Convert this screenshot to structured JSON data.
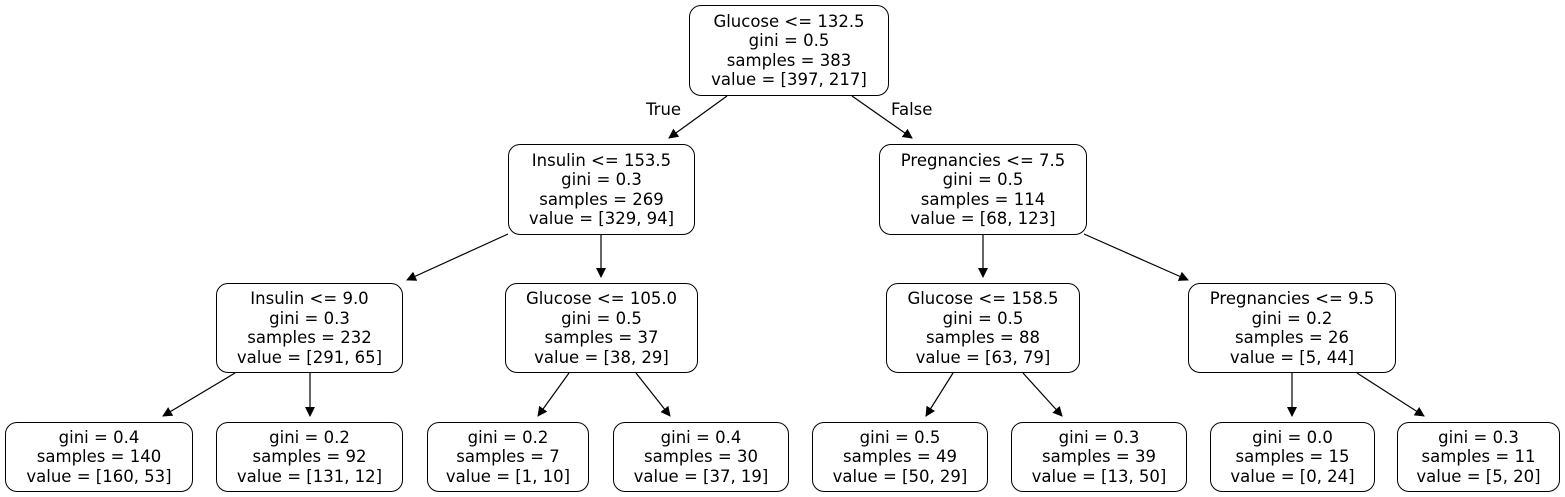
{
  "tree": {
    "root": {
      "lines": [
        "Glucose <= 132.5",
        "gini = 0.5",
        "samples = 383",
        "value = [397, 217]"
      ]
    },
    "l": {
      "lines": [
        "Insulin <= 153.5",
        "gini = 0.3",
        "samples = 269",
        "value = [329, 94]"
      ]
    },
    "r": {
      "lines": [
        "Pregnancies <= 7.5",
        "gini = 0.5",
        "samples = 114",
        "value = [68, 123]"
      ]
    },
    "ll": {
      "lines": [
        "Insulin <= 9.0",
        "gini = 0.3",
        "samples = 232",
        "value = [291, 65]"
      ]
    },
    "lr": {
      "lines": [
        "Glucose <= 105.0",
        "gini = 0.5",
        "samples = 37",
        "value = [38, 29]"
      ]
    },
    "rl": {
      "lines": [
        "Glucose <= 158.5",
        "gini = 0.5",
        "samples = 88",
        "value = [63, 79]"
      ]
    },
    "rr": {
      "lines": [
        "Pregnancies <= 9.5",
        "gini = 0.2",
        "samples = 26",
        "value = [5, 44]"
      ]
    },
    "lll": {
      "lines": [
        "gini = 0.4",
        "samples = 140",
        "value = [160, 53]"
      ]
    },
    "llr": {
      "lines": [
        "gini = 0.2",
        "samples = 92",
        "value = [131, 12]"
      ]
    },
    "lrl": {
      "lines": [
        "gini = 0.2",
        "samples = 7",
        "value = [1, 10]"
      ]
    },
    "lrr": {
      "lines": [
        "gini = 0.4",
        "samples = 30",
        "value = [37, 19]"
      ]
    },
    "rll": {
      "lines": [
        "gini = 0.5",
        "samples = 49",
        "value = [50, 29]"
      ]
    },
    "rlr": {
      "lines": [
        "gini = 0.3",
        "samples = 39",
        "value = [13, 50]"
      ]
    },
    "rrl": {
      "lines": [
        "gini = 0.0",
        "samples = 15",
        "value = [0, 24]"
      ]
    },
    "rrr": {
      "lines": [
        "gini = 0.3",
        "samples = 11",
        "value = [5, 20]"
      ]
    }
  },
  "edge_labels": {
    "true_label": "True",
    "false_label": "False"
  },
  "colors": {
    "stroke": "#000000",
    "fill": "#ffffff"
  }
}
